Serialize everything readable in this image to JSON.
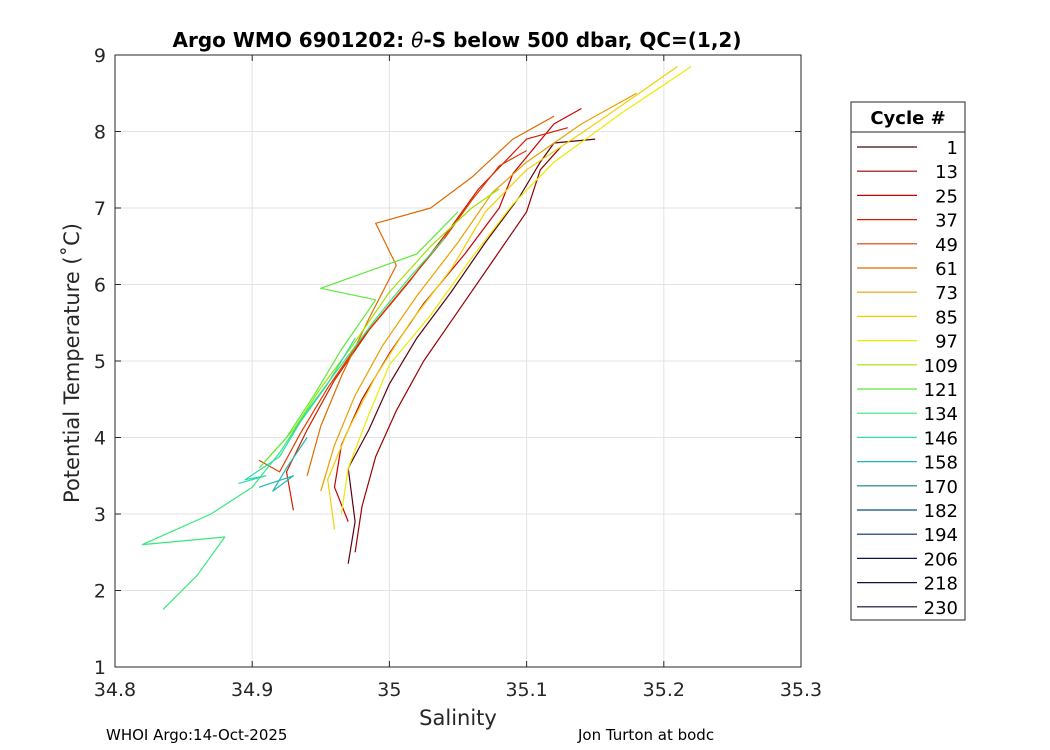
{
  "chart_data": {
    "type": "line",
    "title_prefix": "Argo WMO 6901202: ",
    "title_theta": "θ",
    "title_suffix": "-S below 500 dbar,  QC=(1,2)",
    "xlabel": "Salinity",
    "ylabel": "Potential Temperature (˚C)",
    "xlim": [
      34.8,
      35.3
    ],
    "ylim": [
      1,
      9
    ],
    "xticks": [
      34.8,
      34.9,
      35,
      35.1,
      35.2,
      35.3
    ],
    "xtick_labels": [
      "34.8",
      "34.9",
      "35",
      "35.1",
      "35.2",
      "35.3"
    ],
    "yticks": [
      1,
      2,
      3,
      4,
      5,
      6,
      7,
      8,
      9
    ],
    "ytick_labels": [
      "1",
      "2",
      "3",
      "4",
      "5",
      "6",
      "7",
      "8",
      "9"
    ],
    "grid": true,
    "legend": {
      "title": "Cycle #",
      "placement": "right, outside plot",
      "entries": [
        {
          "label": "1",
          "color": "#3a0d0d"
        },
        {
          "label": "13",
          "color": "#9a0000"
        },
        {
          "label": "25",
          "color": "#c80000"
        },
        {
          "label": "37",
          "color": "#d41d00"
        },
        {
          "label": "49",
          "color": "#e03c00"
        },
        {
          "label": "61",
          "color": "#e06a00"
        },
        {
          "label": "73",
          "color": "#e9a000"
        },
        {
          "label": "85",
          "color": "#f2d000"
        },
        {
          "label": "97",
          "color": "#e8ee00"
        },
        {
          "label": "109",
          "color": "#9de400"
        },
        {
          "label": "121",
          "color": "#5ee83a"
        },
        {
          "label": "134",
          "color": "#36e87a"
        },
        {
          "label": "146",
          "color": "#2cdcb0"
        },
        {
          "label": "158",
          "color": "#1fb8b0"
        },
        {
          "label": "170",
          "color": "#127f8c"
        },
        {
          "label": "182",
          "color": "#0b4f78"
        },
        {
          "label": "194",
          "color": "#0a2a66"
        },
        {
          "label": "206",
          "color": "#08154f"
        },
        {
          "label": "218",
          "color": "#1a0a3a"
        },
        {
          "label": "230",
          "color": "#0a0a2a"
        }
      ]
    },
    "series": [
      {
        "name": "cycle 1",
        "color": "#5a0010",
        "values": [
          [
            34.97,
            2.35
          ],
          [
            34.975,
            2.9
          ],
          [
            34.97,
            3.6
          ],
          [
            34.985,
            4.1
          ],
          [
            35.0,
            4.7
          ],
          [
            35.02,
            5.3
          ],
          [
            35.045,
            5.9
          ],
          [
            35.07,
            6.55
          ],
          [
            35.095,
            7.15
          ],
          [
            35.11,
            7.6
          ],
          [
            35.12,
            7.85
          ],
          [
            35.15,
            7.9
          ]
        ]
      },
      {
        "name": "cycle 13",
        "color": "#9a0000",
        "values": [
          [
            34.975,
            2.5
          ],
          [
            34.98,
            3.1
          ],
          [
            34.99,
            3.75
          ],
          [
            35.005,
            4.35
          ],
          [
            35.025,
            5.0
          ],
          [
            35.05,
            5.65
          ],
          [
            35.075,
            6.3
          ],
          [
            35.1,
            6.95
          ],
          [
            35.11,
            7.5
          ],
          [
            35.125,
            7.8
          ]
        ]
      },
      {
        "name": "cycle 25",
        "color": "#c80000",
        "values": [
          [
            34.97,
            2.9
          ],
          [
            34.96,
            3.35
          ],
          [
            34.965,
            3.9
          ],
          [
            34.98,
            4.5
          ],
          [
            35.0,
            5.1
          ],
          [
            35.025,
            5.75
          ],
          [
            35.055,
            6.4
          ],
          [
            35.08,
            7.0
          ],
          [
            35.09,
            7.45
          ],
          [
            35.12,
            8.1
          ],
          [
            35.14,
            8.3
          ]
        ]
      },
      {
        "name": "cycle 37",
        "color": "#d41d00",
        "values": [
          [
            34.93,
            3.05
          ],
          [
            34.925,
            3.55
          ],
          [
            34.94,
            4.1
          ],
          [
            34.96,
            4.75
          ],
          [
            34.985,
            5.4
          ],
          [
            35.015,
            6.05
          ],
          [
            35.045,
            6.75
          ],
          [
            35.065,
            7.25
          ],
          [
            35.1,
            7.9
          ],
          [
            35.13,
            8.05
          ]
        ]
      },
      {
        "name": "cycle 49",
        "color": "#e03c00",
        "values": [
          [
            34.905,
            3.7
          ],
          [
            34.92,
            3.55
          ],
          [
            34.935,
            4.05
          ],
          [
            34.955,
            4.65
          ],
          [
            34.98,
            5.3
          ],
          [
            35.01,
            5.95
          ],
          [
            35.04,
            6.6
          ],
          [
            35.06,
            7.1
          ],
          [
            35.08,
            7.55
          ],
          [
            35.1,
            7.75
          ]
        ]
      },
      {
        "name": "cycle 61",
        "color": "#e06a00",
        "values": [
          [
            34.94,
            3.5
          ],
          [
            34.95,
            4.15
          ],
          [
            34.965,
            4.8
          ],
          [
            34.985,
            5.55
          ],
          [
            35.005,
            6.25
          ],
          [
            34.99,
            6.8
          ],
          [
            35.03,
            7.0
          ],
          [
            35.06,
            7.4
          ],
          [
            35.09,
            7.9
          ],
          [
            35.12,
            8.2
          ]
        ]
      },
      {
        "name": "cycle 73",
        "color": "#e9a000",
        "values": [
          [
            34.95,
            3.3
          ],
          [
            34.96,
            3.9
          ],
          [
            34.975,
            4.55
          ],
          [
            34.995,
            5.2
          ],
          [
            35.02,
            5.85
          ],
          [
            35.05,
            6.55
          ],
          [
            35.075,
            7.2
          ],
          [
            35.1,
            7.6
          ],
          [
            35.14,
            8.1
          ],
          [
            35.18,
            8.5
          ]
        ]
      },
      {
        "name": "cycle 85",
        "color": "#f2d000",
        "values": [
          [
            34.96,
            2.8
          ],
          [
            34.955,
            3.45
          ],
          [
            34.97,
            4.1
          ],
          [
            34.99,
            4.8
          ],
          [
            35.015,
            5.5
          ],
          [
            35.045,
            6.2
          ],
          [
            35.07,
            6.95
          ],
          [
            35.1,
            7.5
          ],
          [
            35.15,
            8.1
          ],
          [
            35.21,
            8.85
          ]
        ]
      },
      {
        "name": "cycle 97",
        "color": "#e8ee00",
        "values": [
          [
            34.965,
            3.0
          ],
          [
            34.97,
            3.6
          ],
          [
            34.985,
            4.3
          ],
          [
            35.0,
            4.95
          ],
          [
            35.03,
            5.6
          ],
          [
            35.06,
            6.35
          ],
          [
            35.09,
            7.05
          ],
          [
            35.12,
            7.6
          ],
          [
            35.17,
            8.25
          ],
          [
            35.22,
            8.85
          ]
        ]
      },
      {
        "name": "cycle 109",
        "color": "#9de400",
        "values": [
          [
            34.91,
            3.7
          ],
          [
            34.93,
            4.1
          ],
          [
            34.95,
            4.65
          ],
          [
            34.975,
            5.25
          ],
          [
            35.0,
            5.9
          ],
          [
            35.03,
            6.5
          ],
          [
            35.06,
            7.0
          ],
          [
            35.08,
            7.25
          ]
        ]
      },
      {
        "name": "cycle 121",
        "color": "#5ee83a",
        "values": [
          [
            34.905,
            3.6
          ],
          [
            34.925,
            4.0
          ],
          [
            34.945,
            4.55
          ],
          [
            34.965,
            5.15
          ],
          [
            34.99,
            5.8
          ],
          [
            34.95,
            5.95
          ],
          [
            35.02,
            6.4
          ],
          [
            35.05,
            6.95
          ]
        ]
      },
      {
        "name": "cycle 134",
        "color": "#36e87a",
        "values": [
          [
            34.835,
            1.75
          ],
          [
            34.86,
            2.2
          ],
          [
            34.88,
            2.7
          ],
          [
            34.82,
            2.6
          ],
          [
            34.87,
            3.0
          ],
          [
            34.9,
            3.35
          ],
          [
            34.92,
            3.8
          ],
          [
            34.94,
            4.35
          ],
          [
            34.965,
            4.95
          ],
          [
            34.99,
            5.55
          ],
          [
            35.015,
            6.1
          ],
          [
            35.04,
            6.6
          ]
        ]
      },
      {
        "name": "cycle 146",
        "color": "#2cdcb0",
        "values": [
          [
            34.89,
            3.4
          ],
          [
            34.91,
            3.5
          ],
          [
            34.895,
            3.45
          ],
          [
            34.92,
            3.75
          ],
          [
            34.935,
            4.2
          ],
          [
            34.955,
            4.7
          ],
          [
            34.975,
            5.3
          ]
        ]
      },
      {
        "name": "cycle 158",
        "color": "#1fb8b0",
        "values": [
          [
            34.905,
            3.35
          ],
          [
            34.93,
            3.5
          ],
          [
            34.915,
            3.3
          ],
          [
            34.925,
            3.6
          ],
          [
            34.94,
            4.0
          ]
        ]
      }
    ]
  },
  "footer": {
    "left": "WHOI Argo:14-Oct-2025",
    "right": "Jon Turton at bodc"
  }
}
